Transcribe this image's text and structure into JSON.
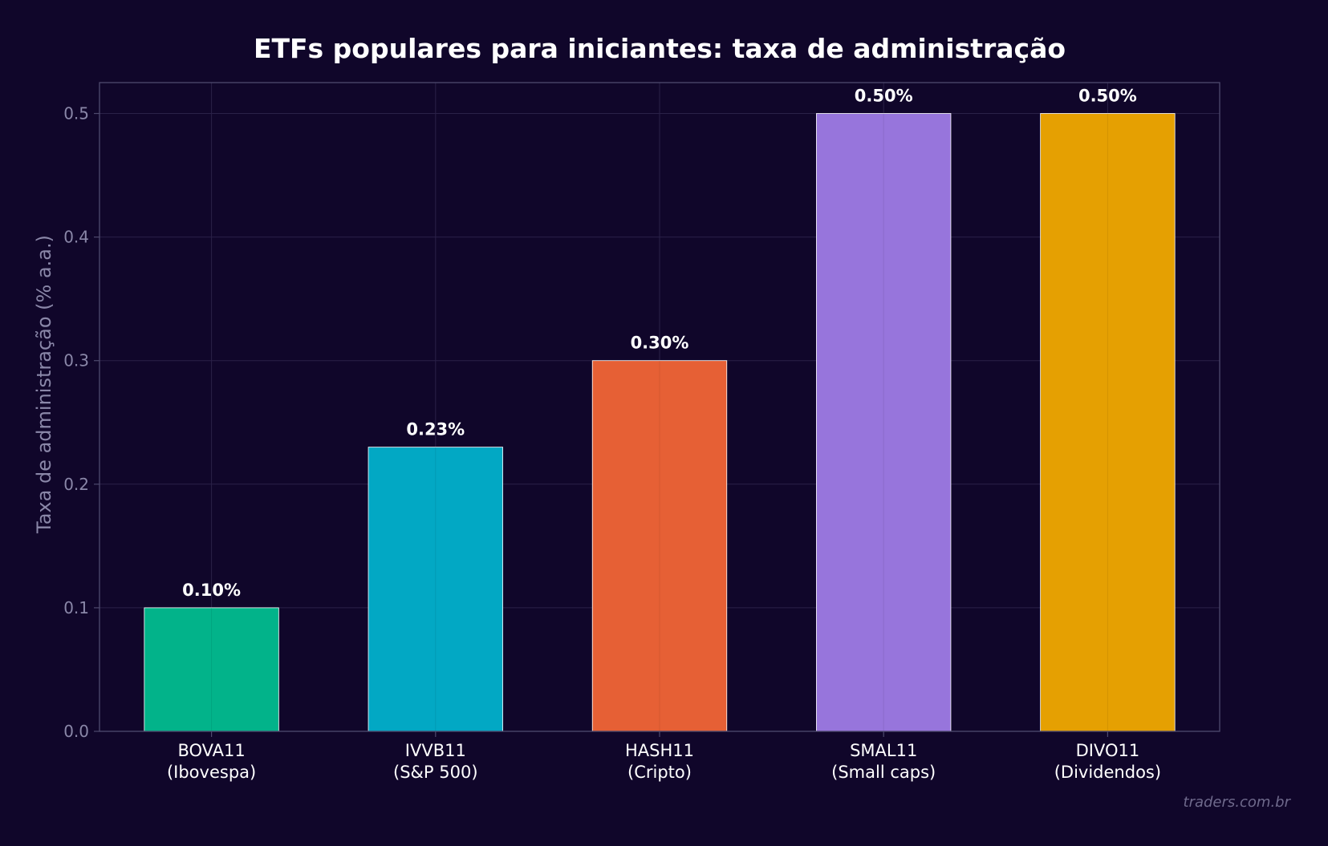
{
  "chart_data": {
    "type": "bar",
    "title": "ETFs populares para iniciantes: taxa de administração",
    "ylabel": "Taxa de administração (% a.a.)",
    "xlabel": "",
    "ylim": [
      0,
      0.525
    ],
    "yticks": [
      "0.0",
      "0.1",
      "0.2",
      "0.3",
      "0.4",
      "0.5"
    ],
    "grid": true,
    "categories": [
      [
        "BOVA11",
        "(Ibovespa)"
      ],
      [
        "IVVB11",
        "(S&P 500)"
      ],
      [
        "HASH11",
        "(Cripto)"
      ],
      [
        "SMAL11",
        "(Small caps)"
      ],
      [
        "DIVO11",
        "(Dividendos)"
      ]
    ],
    "values": [
      0.1,
      0.23,
      0.3,
      0.5,
      0.5
    ],
    "value_labels": [
      "0.10%",
      "0.23%",
      "0.30%",
      "0.50%",
      "0.50%"
    ],
    "colors": [
      "#02b38a",
      "#02a8c4",
      "#e66035",
      "#9775dc",
      "#e5a002"
    ]
  },
  "watermark": "traders.com.br",
  "theme": {
    "background": "#10062a",
    "grid": "#2a2148",
    "frame": "#4e4a6e",
    "bar_edge": "#ffffff"
  }
}
